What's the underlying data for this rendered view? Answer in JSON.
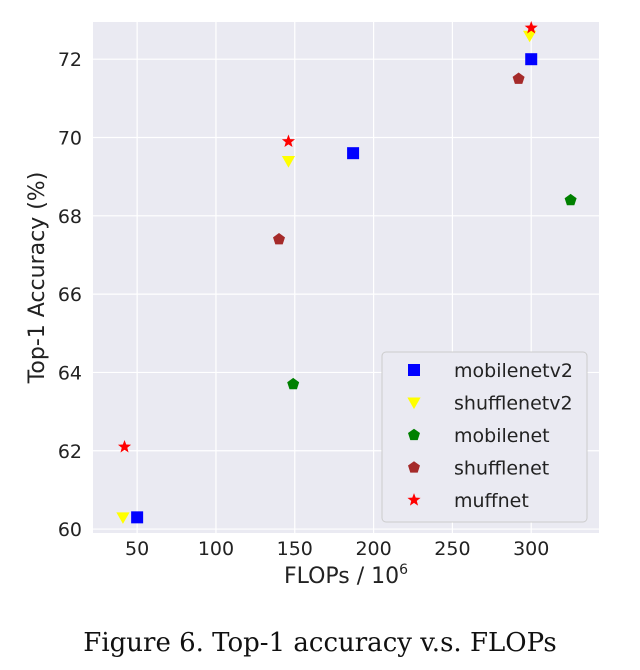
{
  "caption": "Figure 6. Top-1 accuracy v.s. FLOPs",
  "chart_data": {
    "type": "scatter",
    "title": "",
    "xlabel_base": "FLOPs / 10",
    "xlabel_exp": "6",
    "ylabel": "Top-1 Accuracy (%)",
    "xlim": [
      22,
      343
    ],
    "ylim": [
      59.9,
      72.95
    ],
    "xticks": [
      50,
      100,
      150,
      200,
      250,
      300
    ],
    "yticks": [
      60,
      62,
      64,
      66,
      68,
      70,
      72
    ],
    "grid": true,
    "legend_position": "bottom-right",
    "background": "#eaeaf2",
    "series": [
      {
        "name": "mobilenetv2",
        "marker": "square",
        "color": "#0000ff",
        "points": [
          [
            50,
            60.3
          ],
          [
            187,
            69.6
          ],
          [
            300,
            72.0
          ]
        ]
      },
      {
        "name": "shufflenetv2",
        "marker": "triangle-down",
        "color": "#ffff00",
        "points": [
          [
            41,
            60.3
          ],
          [
            146,
            69.4
          ],
          [
            299,
            72.6
          ]
        ]
      },
      {
        "name": "mobilenet",
        "marker": "pentagon",
        "color": "#008000",
        "points": [
          [
            149,
            63.7
          ],
          [
            325,
            68.4
          ]
        ]
      },
      {
        "name": "shufflenet",
        "marker": "pentagon",
        "color": "#a52a2a",
        "points": [
          [
            140,
            67.4
          ],
          [
            292,
            71.5
          ]
        ]
      },
      {
        "name": "muffnet",
        "marker": "star",
        "color": "#ff0000",
        "points": [
          [
            42,
            62.1
          ],
          [
            146,
            69.9
          ],
          [
            300,
            72.8
          ]
        ]
      }
    ]
  }
}
